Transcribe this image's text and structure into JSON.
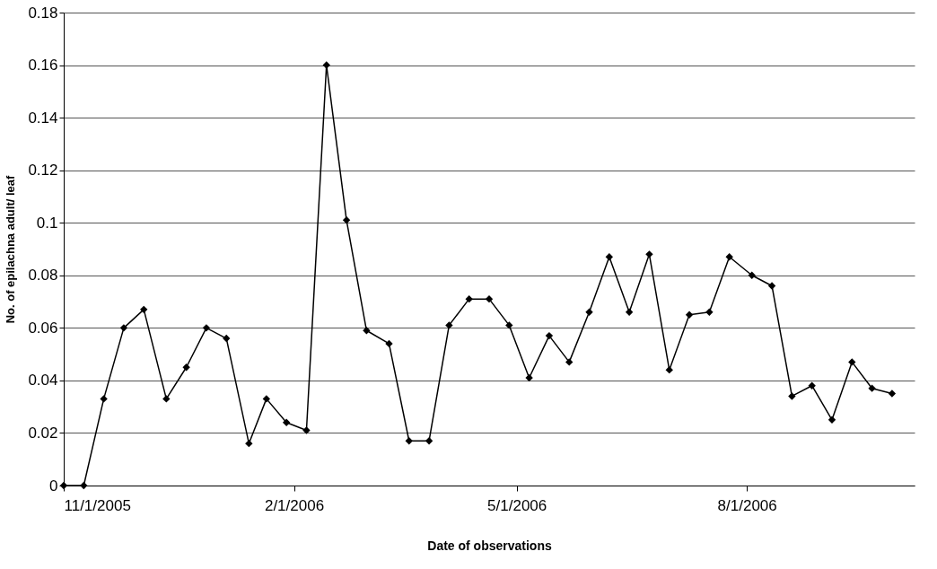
{
  "chart_data": {
    "type": "line",
    "xlabel": "Date of observations",
    "ylabel": "No. of epilachna adult/ leaf",
    "x": [
      "2005-11-01",
      "2005-11-09",
      "2005-11-17",
      "2005-11-25",
      "2005-12-03",
      "2005-12-12",
      "2005-12-20",
      "2005-12-28",
      "2006-01-05",
      "2006-01-14",
      "2006-01-21",
      "2006-01-29",
      "2006-02-06",
      "2006-02-14",
      "2006-02-22",
      "2006-03-02",
      "2006-03-11",
      "2006-03-19",
      "2006-03-27",
      "2006-04-04",
      "2006-04-12",
      "2006-04-20",
      "2006-04-28",
      "2006-05-06",
      "2006-05-14",
      "2006-05-22",
      "2006-05-30",
      "2006-06-07",
      "2006-06-15",
      "2006-06-23",
      "2006-07-01",
      "2006-07-09",
      "2006-07-17",
      "2006-07-25",
      "2006-08-03",
      "2006-08-11",
      "2006-08-19",
      "2006-08-27",
      "2006-09-04",
      "2006-09-12",
      "2006-09-20",
      "2006-09-28"
    ],
    "series": [
      {
        "color": "#000000",
        "values": [
          0,
          0,
          0.033,
          0.06,
          0.067,
          0.033,
          0.045,
          0.06,
          0.056,
          0.016,
          0.033,
          0.024,
          0.021,
          0.16,
          0.101,
          0.059,
          0.054,
          0.017,
          0.017,
          0.061,
          0.071,
          0.071,
          0.061,
          0.041,
          0.057,
          0.047,
          0.066,
          0.087,
          0.066,
          0.088,
          0.044,
          0.065,
          0.066,
          0.087,
          0.08,
          0.076,
          0.034,
          0.038,
          0.025,
          0.047,
          0.037,
          0.035
        ]
      }
    ],
    "xlim": [
      "2005-11-01",
      "2006-10-07"
    ],
    "xticks": [
      {
        "value": "2005-11-01",
        "label": "11/1/2005"
      },
      {
        "value": "2006-02-01",
        "label": "2/1/2006"
      },
      {
        "value": "2006-05-01",
        "label": "5/1/2006"
      },
      {
        "value": "2006-08-01",
        "label": "8/1/2006"
      }
    ],
    "ylim": [
      0,
      0.18
    ],
    "yticks": [
      0,
      0.02,
      0.04,
      0.06,
      0.08,
      0.1,
      0.12,
      0.14,
      0.16,
      0.18
    ],
    "grid": "y",
    "marker": "diamond",
    "line_style": "solid",
    "legend": false
  }
}
